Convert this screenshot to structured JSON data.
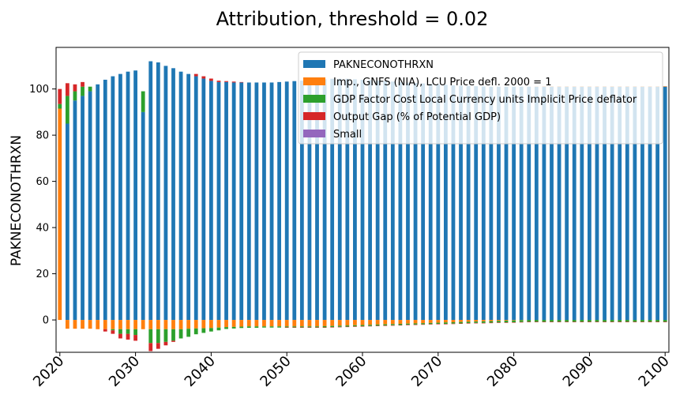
{
  "chart_data": {
    "type": "bar",
    "stacked": true,
    "title": "Attribution, threshold = 0.02",
    "xlabel": "",
    "ylabel": "PAKNECONOTHRXN",
    "xlim": [
      2020,
      2100
    ],
    "ylim": [
      -14,
      118
    ],
    "yticks": [
      0,
      20,
      40,
      60,
      80,
      100
    ],
    "xticks": [
      2020,
      2030,
      2040,
      2050,
      2060,
      2070,
      2080,
      2090,
      2100
    ],
    "legend_position": "top-right",
    "years": [
      2020,
      2021,
      2022,
      2023,
      2024,
      2025,
      2026,
      2027,
      2028,
      2029,
      2030,
      2031,
      2032,
      2033,
      2034,
      2035,
      2036,
      2037,
      2038,
      2039,
      2040,
      2041,
      2042,
      2043,
      2044,
      2045,
      2046,
      2047,
      2048,
      2049,
      2050,
      2051,
      2052,
      2053,
      2054,
      2055,
      2056,
      2057,
      2058,
      2059,
      2060,
      2061,
      2062,
      2063,
      2064,
      2065,
      2066,
      2067,
      2068,
      2069,
      2070,
      2071,
      2072,
      2073,
      2074,
      2075,
      2076,
      2077,
      2078,
      2079,
      2080,
      2081,
      2082,
      2083,
      2084,
      2085,
      2086,
      2087,
      2088,
      2089,
      2090,
      2091,
      2092,
      2093,
      2094,
      2095,
      2096,
      2097,
      2098,
      2099,
      2100
    ],
    "series": [
      {
        "name": "PAKNECONOTHRXN",
        "color": "#1f77b4",
        "values": [
          0,
          85,
          95,
          97,
          99,
          102,
          104,
          105.5,
          106.5,
          107.5,
          108,
          90,
          112,
          111.5,
          110,
          109,
          107.5,
          106.5,
          105.5,
          104.5,
          103.5,
          103,
          103,
          102.8,
          102.8,
          102.8,
          102.8,
          102.8,
          102.8,
          103,
          103.2,
          103.4,
          103.6,
          103.8,
          104,
          104.2,
          104.4,
          104.4,
          104.4,
          104.2,
          104,
          103.8,
          103.6,
          103.4,
          103.2,
          103,
          102.8,
          102.6,
          102.4,
          102.2,
          102,
          101.8,
          101.6,
          101.4,
          101.3,
          101.2,
          101.1,
          101,
          101,
          101,
          101,
          101,
          101,
          101,
          101,
          101,
          101,
          101,
          101,
          101,
          101,
          101,
          101,
          101,
          101,
          101,
          101,
          101,
          101,
          101,
          101
        ]
      },
      {
        "name": "Imp., GNFS (NIA), LCU Price defl. 2000 = 1",
        "color": "#ff7f0e",
        "values": [
          91.5,
          -3.8,
          -3.8,
          -3.8,
          -3.8,
          -4,
          -4,
          -4,
          -4,
          -4,
          -4,
          -4,
          -4,
          -4,
          -4,
          -4,
          -4,
          -3.8,
          -3.7,
          -3.6,
          -3.5,
          -3.3,
          -3.1,
          -3,
          -2.9,
          -2.8,
          -2.8,
          -2.8,
          -2.8,
          -2.8,
          -2.8,
          -2.8,
          -2.8,
          -2.8,
          -2.8,
          -2.7,
          -2.6,
          -2.5,
          -2.4,
          -2.3,
          -2.2,
          -2.1,
          -2,
          -1.9,
          -1.8,
          -1.7,
          -1.6,
          -1.5,
          -1.4,
          -1.3,
          -1.2,
          -1.1,
          -1,
          -0.9,
          -0.8,
          -0.7,
          -0.6,
          -0.5,
          -0.4,
          -0.3,
          -0.2,
          -0.1,
          0,
          0.1,
          0.2,
          0.2,
          0.2,
          0.2,
          0.2,
          0.2,
          0.2,
          0.2,
          0.2,
          0.2,
          0.2,
          0.2,
          0.2,
          0.2,
          0.2,
          0.2,
          0.2
        ]
      },
      {
        "name": "GDP Factor Cost Local Currency units Implicit Price deflator",
        "color": "#2ca02c",
        "values": [
          2,
          12,
          4,
          4,
          2,
          0,
          0,
          -0.5,
          -2,
          -2,
          -2.5,
          9,
          -6,
          -6,
          -5.5,
          -5,
          -4,
          -3.5,
          -2.5,
          -2,
          -1.5,
          -1.2,
          -0.8,
          -0.7,
          -0.6,
          -0.6,
          -0.6,
          -0.5,
          -0.5,
          -0.5,
          -0.4,
          -0.4,
          -0.4,
          -0.4,
          -0.4,
          -0.5,
          -0.5,
          -0.5,
          -0.5,
          -0.5,
          -0.5,
          -0.5,
          -0.5,
          -0.5,
          -0.5,
          -0.5,
          -0.5,
          -0.5,
          -0.5,
          -0.5,
          -0.5,
          -0.6,
          -0.6,
          -0.6,
          -0.6,
          -0.6,
          -0.7,
          -0.7,
          -0.7,
          -0.8,
          -0.8,
          -0.8,
          -0.8,
          -0.8,
          -0.8,
          -0.8,
          -0.8,
          -0.8,
          -0.8,
          -0.8,
          -0.8,
          -0.8,
          -0.8,
          -0.8,
          -0.8,
          -0.8,
          -0.8,
          -0.8,
          -0.8,
          -0.8,
          -0.8
        ]
      },
      {
        "name": "Output Gap (% of Potential GDP)",
        "color": "#d62728",
        "values": [
          6.5,
          5.5,
          3,
          2,
          0,
          0,
          -1,
          -1.5,
          -2,
          -2.5,
          -2.5,
          0,
          -3.5,
          -2.5,
          -1.5,
          -0.5,
          0,
          0,
          1,
          1,
          1,
          0.6,
          0.4,
          0.4,
          0.2,
          0,
          0,
          0,
          0,
          0,
          -0.2,
          -0.2,
          -0.2,
          -0.2,
          -0.2,
          -0.2,
          -0.2,
          -0.2,
          -0.2,
          -0.2,
          -0.2,
          -0.2,
          -0.2,
          -0.2,
          -0.2,
          -0.2,
          -0.2,
          -0.2,
          -0.2,
          -0.2,
          -0.2,
          -0.2,
          -0.2,
          -0.2,
          -0.2,
          -0.2,
          -0.2,
          -0.2,
          -0.2,
          -0.2,
          -0.2,
          -0.2,
          -0.2,
          -0.2,
          -0.2,
          -0.2,
          -0.2,
          -0.2,
          -0.2,
          -0.2,
          -0.2,
          -0.2,
          -0.2,
          -0.2,
          -0.2,
          -0.2,
          -0.2,
          -0.2,
          -0.2,
          -0.2,
          -0.2
        ]
      },
      {
        "name": "Small",
        "color": "#9467bd",
        "values": [
          0,
          0,
          0,
          0,
          0,
          0,
          0,
          0,
          0,
          0,
          0,
          0,
          0,
          0,
          0,
          0,
          0,
          0,
          0,
          0,
          0,
          0,
          0,
          0,
          0,
          0,
          0,
          0,
          0,
          0,
          0,
          0,
          0,
          0,
          0,
          0,
          0,
          0,
          0,
          0,
          0,
          0,
          0,
          0,
          0,
          0,
          0,
          0,
          0,
          0,
          0,
          0,
          0,
          0,
          0,
          0,
          0,
          0,
          0,
          0,
          0,
          0,
          0,
          0,
          0,
          0,
          0,
          0,
          0,
          0,
          0,
          0,
          0,
          0,
          0,
          0,
          0,
          0,
          0,
          0,
          0
        ]
      }
    ]
  }
}
